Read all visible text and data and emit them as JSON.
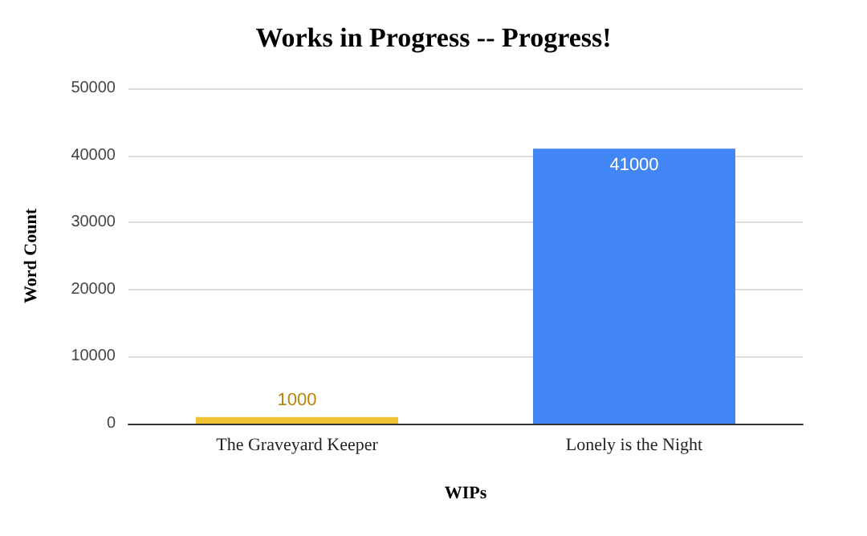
{
  "chart_data": {
    "type": "bar",
    "title": "Works in Progress -- Progress!",
    "xlabel": "WIPs",
    "ylabel": "Word Count",
    "categories": [
      "The Graveyard Keeper",
      "Lonely is the Night"
    ],
    "values": [
      1000,
      41000
    ],
    "colors": [
      "#f1c232",
      "#4285f4"
    ],
    "ylim": [
      0,
      50000
    ],
    "yticks": [
      0,
      10000,
      20000,
      30000,
      40000,
      50000
    ],
    "grid": "y",
    "data_labels": true
  }
}
